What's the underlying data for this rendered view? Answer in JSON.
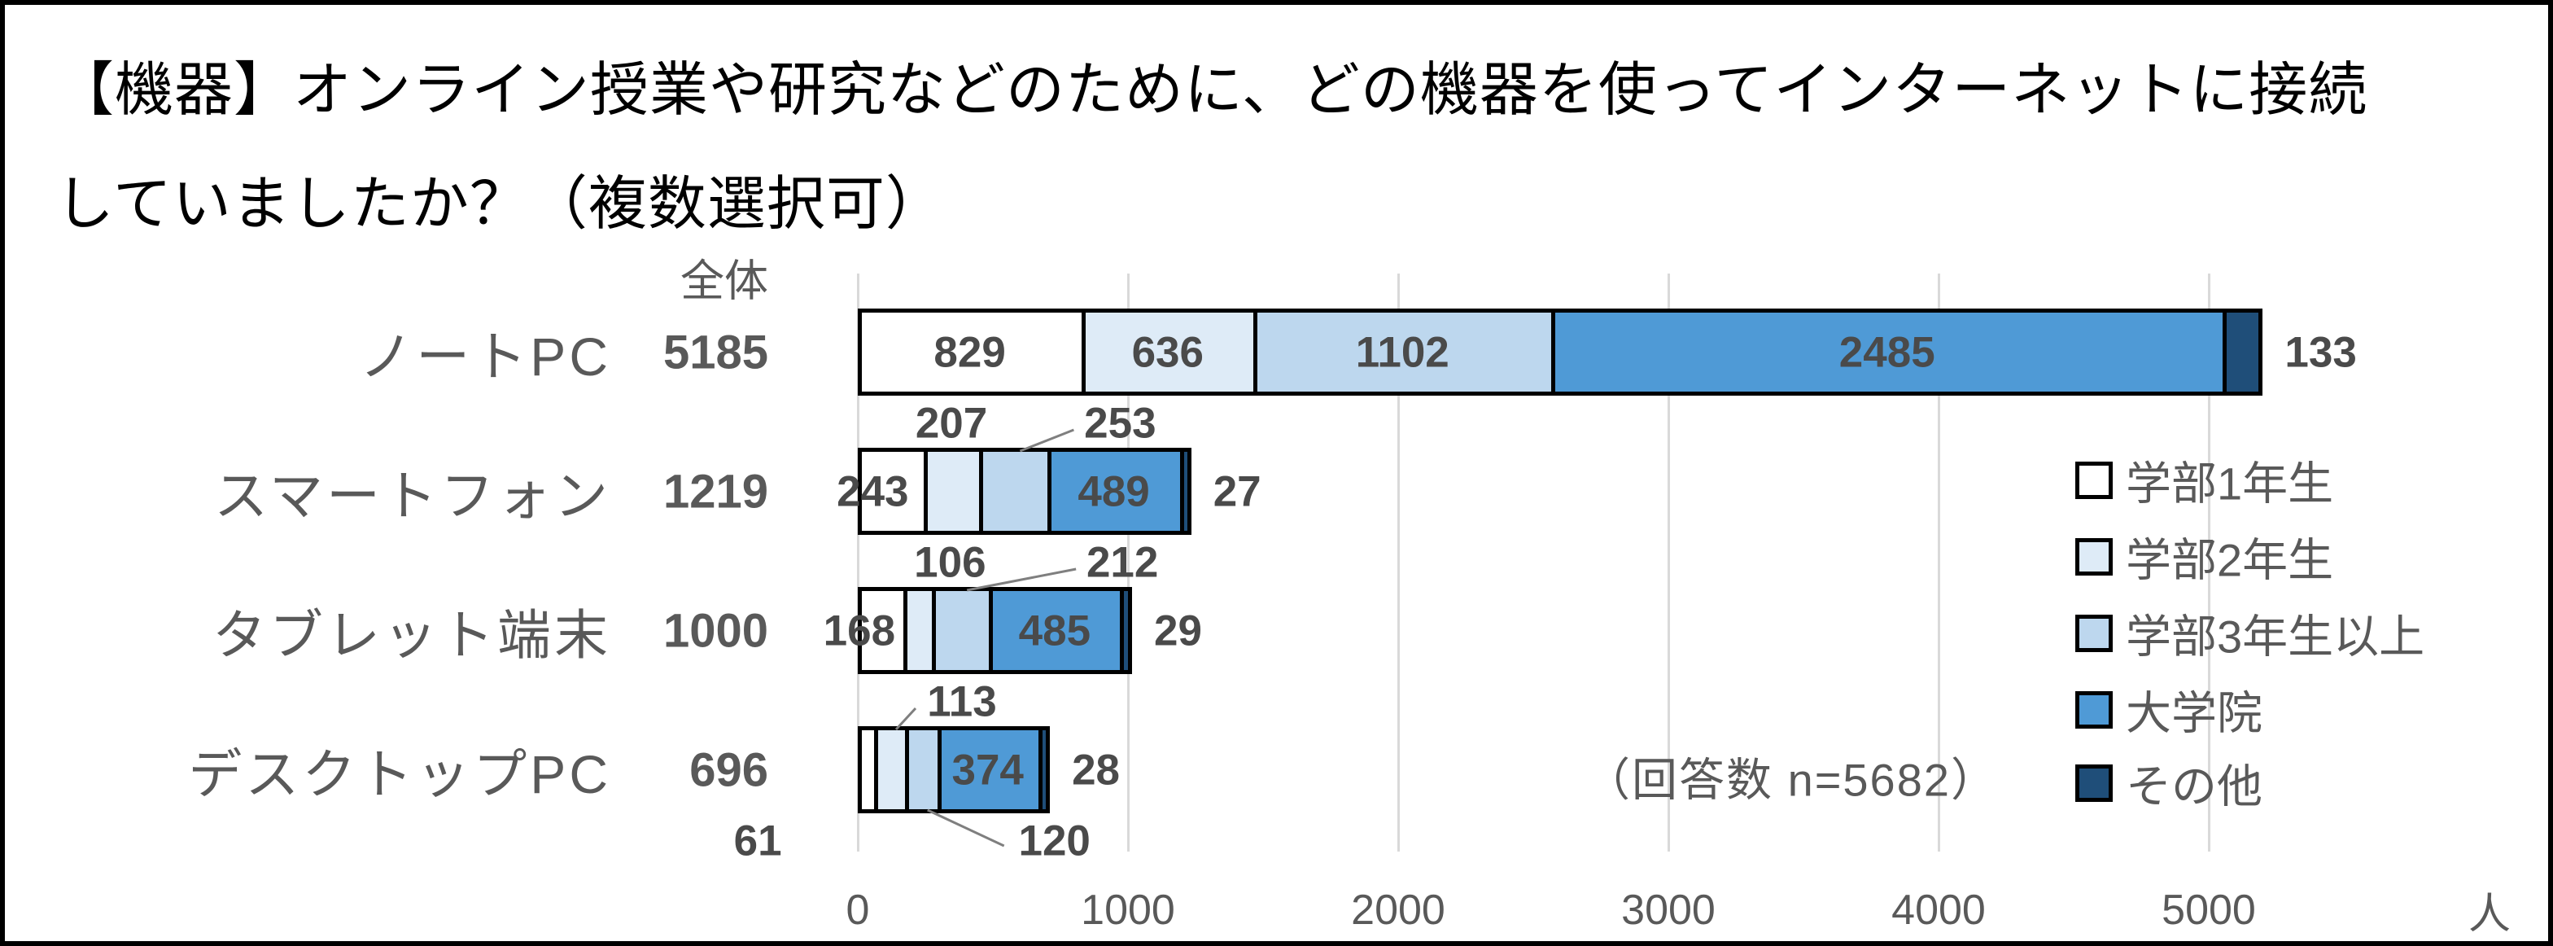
{
  "title": {
    "line1": "【機器】オンライン授業や研究などのために、どの機器を使ってインターネットに接続",
    "line2": "していましたか？（複数選択可）"
  },
  "overall_label": "全体",
  "note": "（回答数 n=5682）",
  "x_axis": {
    "ticks": [
      0,
      1000,
      2000,
      3000,
      4000,
      5000
    ],
    "unit": "人"
  },
  "legend": {
    "position": "right",
    "items": [
      {
        "label": "学部1年生",
        "color": "#FFFFFF"
      },
      {
        "label": "学部2年生",
        "color": "#DEEBF7"
      },
      {
        "label": "学部3年生以上",
        "color": "#BDD7EE"
      },
      {
        "label": "大学院",
        "color": "#4F9AD6"
      },
      {
        "label": "その他",
        "color": "#1F4E79"
      }
    ]
  },
  "chart_data": {
    "type": "bar",
    "variant": "horizontal-stacked",
    "title": "【機器】オンライン授業や研究などのために、どの機器を使ってインターネットに接続していましたか？（複数選択可）",
    "categories": [
      "ノートPC",
      "スマートフォン",
      "タブレット端末",
      "デスクトップPC"
    ],
    "totals": [
      5185,
      1219,
      1000,
      696
    ],
    "series": [
      {
        "name": "学部1年生",
        "color": "#FFFFFF",
        "values": [
          829,
          243,
          168,
          61
        ]
      },
      {
        "name": "学部2年生",
        "color": "#DEEBF7",
        "values": [
          636,
          207,
          106,
          113
        ]
      },
      {
        "name": "学部3年生以上",
        "color": "#BDD7EE",
        "values": [
          1102,
          253,
          212,
          120
        ]
      },
      {
        "name": "大学院",
        "color": "#4F9AD6",
        "values": [
          2485,
          489,
          485,
          374
        ]
      },
      {
        "name": "その他",
        "color": "#1F4E79",
        "values": [
          133,
          27,
          29,
          28
        ]
      }
    ],
    "sample_note": "（回答数 n=5682）",
    "xlim": [
      0,
      5000
    ],
    "grid": true,
    "legend_position": "right",
    "x_unit": "人",
    "label_layout": [
      [
        {
          "pos": "in"
        },
        {
          "pos": "in"
        },
        {
          "pos": "in"
        },
        {
          "pos": "in"
        },
        {
          "pos": "right"
        }
      ],
      [
        {
          "pos": "in",
          "dx": -22
        },
        {
          "pos": "up"
        },
        {
          "pos": "up",
          "dx": 131,
          "leader": true
        },
        {
          "pos": "in"
        },
        {
          "pos": "right"
        }
      ],
      [
        {
          "pos": "in",
          "dx": -26
        },
        {
          "pos": "up",
          "dx": 40
        },
        {
          "pos": "up",
          "dx": 199,
          "leader": true
        },
        {
          "pos": "in"
        },
        {
          "pos": "right"
        }
      ],
      [
        {
          "pos": "down",
          "dx": -133
        },
        {
          "pos": "up",
          "dx": 89,
          "leader": true
        },
        {
          "pos": "down",
          "dx": 164,
          "leader": true
        },
        {
          "pos": "in"
        },
        {
          "pos": "right"
        }
      ]
    ]
  },
  "colors": {
    "text_gray": "#595959",
    "value_text": "#4A4A4A",
    "gridline": "#D9D9D9",
    "bar_border": "#000000",
    "leader": "#7F7F7F"
  }
}
